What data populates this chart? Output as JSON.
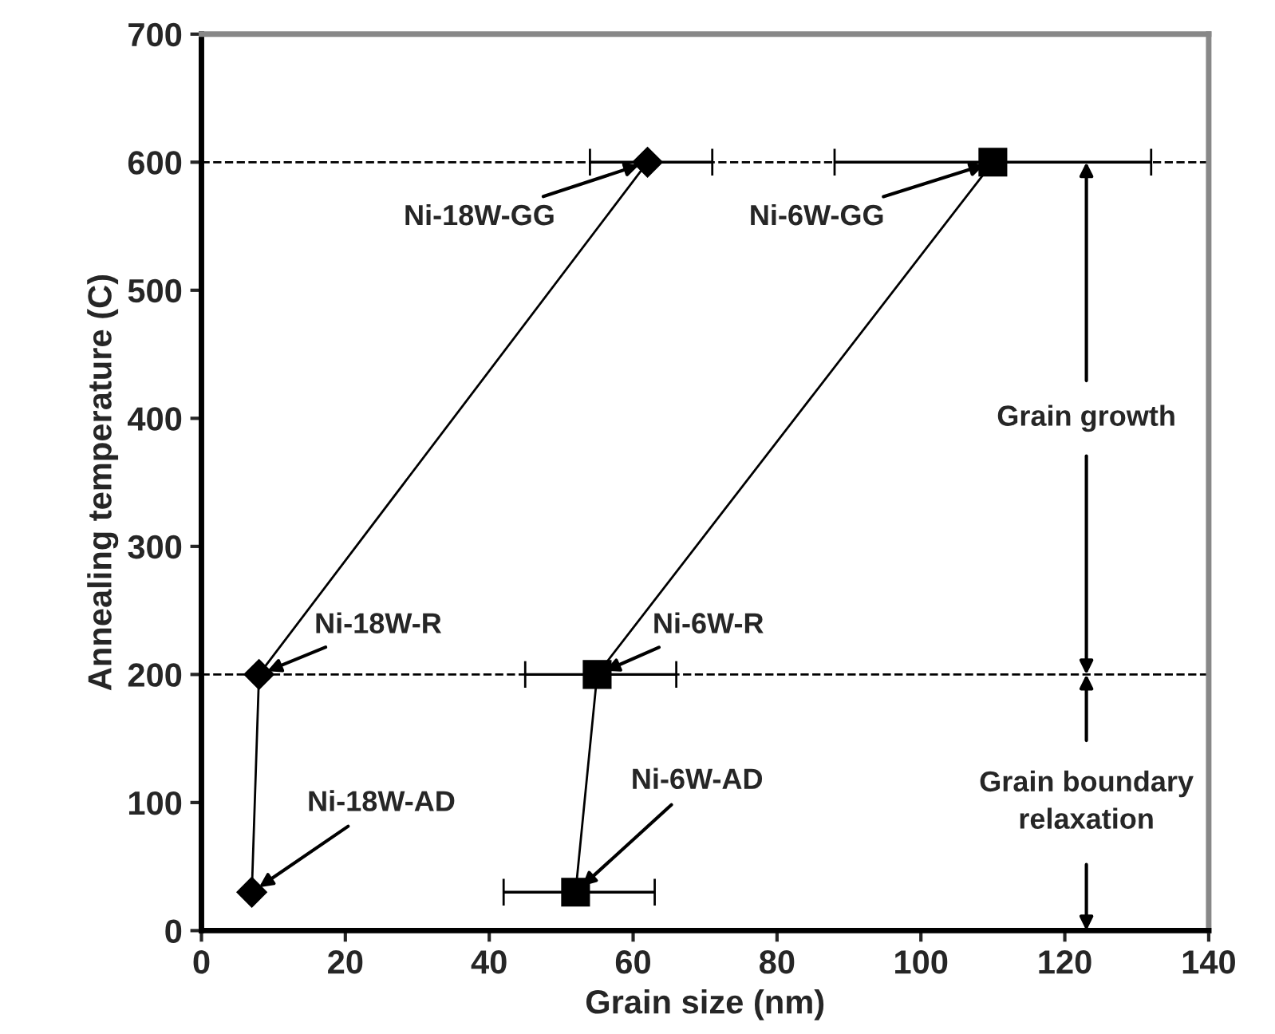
{
  "chart_data": {
    "type": "line",
    "xlabel": "Grain size (nm)",
    "ylabel": "Annealing temperature (C)",
    "xlim": [
      0,
      140
    ],
    "xticks": [
      0,
      20,
      40,
      60,
      80,
      100,
      120,
      140
    ],
    "ylim": [
      0,
      700
    ],
    "yticks": [
      0,
      100,
      200,
      300,
      400,
      500,
      600,
      700
    ],
    "grid": false,
    "legend": false,
    "line_style": "solid",
    "series": [
      {
        "color": "#000000",
        "marker": "diamond",
        "x": [
          7,
          8,
          62
        ],
        "values": [
          30,
          200,
          600
        ],
        "xerrors": [
          null,
          null,
          [
            54,
            71
          ]
        ]
      },
      {
        "color": "#000000",
        "marker": "square",
        "x": [
          52,
          55,
          110
        ],
        "values": [
          30,
          200,
          600
        ],
        "xerrors": [
          [
            42,
            63
          ],
          [
            45,
            66
          ],
          [
            88,
            132
          ]
        ]
      }
    ],
    "ref_lines": [
      {
        "axis": "y",
        "value": 600,
        "line_style": "dashed",
        "color": "#000000"
      },
      {
        "axis": "y",
        "value": 200,
        "line_style": "dashed",
        "color": "#000000"
      }
    ],
    "annotations": [
      {
        "text": "Ni-18W-GG",
        "x": 62,
        "y": 600
      },
      {
        "text": "Ni-6W-GG",
        "x": 110,
        "y": 600
      },
      {
        "text": "Ni-18W-R",
        "x": 8,
        "y": 200
      },
      {
        "text": "Ni-6W-R",
        "x": 55,
        "y": 200
      },
      {
        "text": "Ni-18W-AD",
        "x": 7,
        "y": 30
      },
      {
        "text": "Ni-6W-AD",
        "x": 52,
        "y": 30
      },
      {
        "text": "Grain growth",
        "x": 123,
        "y": 600
      },
      {
        "text": "Grain boundary\nrelaxation",
        "x": 123,
        "y": 200
      }
    ]
  }
}
